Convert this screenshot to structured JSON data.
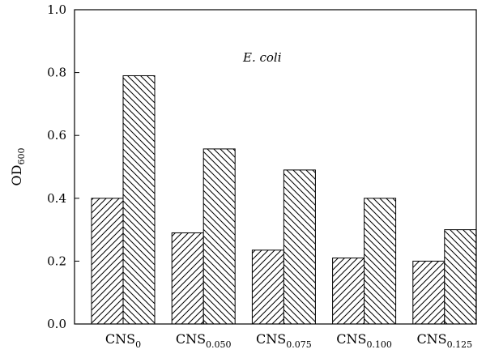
{
  "chart_data": {
    "type": "bar",
    "title": "",
    "xlabel": "",
    "ylabel": {
      "main": "OD",
      "sub": "600"
    },
    "ylim": [
      0,
      1.0
    ],
    "yticks": [
      "0.0",
      "0.2",
      "0.4",
      "0.6",
      "0.8",
      "1.0"
    ],
    "categories": [
      {
        "main": "CNS",
        "sub": "0"
      },
      {
        "main": "CNS",
        "sub": "0.050"
      },
      {
        "main": "CNS",
        "sub": "0.075"
      },
      {
        "main": "CNS",
        "sub": "0.100"
      },
      {
        "main": "CNS",
        "sub": "0.125"
      }
    ],
    "series": [
      {
        "pattern": "hatch-forward",
        "values": [
          0.4,
          0.29,
          0.235,
          0.21,
          0.2
        ]
      },
      {
        "pattern": "hatch-backward",
        "values": [
          0.79,
          0.557,
          0.49,
          0.4,
          0.3
        ]
      }
    ],
    "annotation": "E. coli",
    "grid": false,
    "legend": "none",
    "colors": {
      "stroke": "#000000",
      "fill": "#ffffff"
    }
  }
}
